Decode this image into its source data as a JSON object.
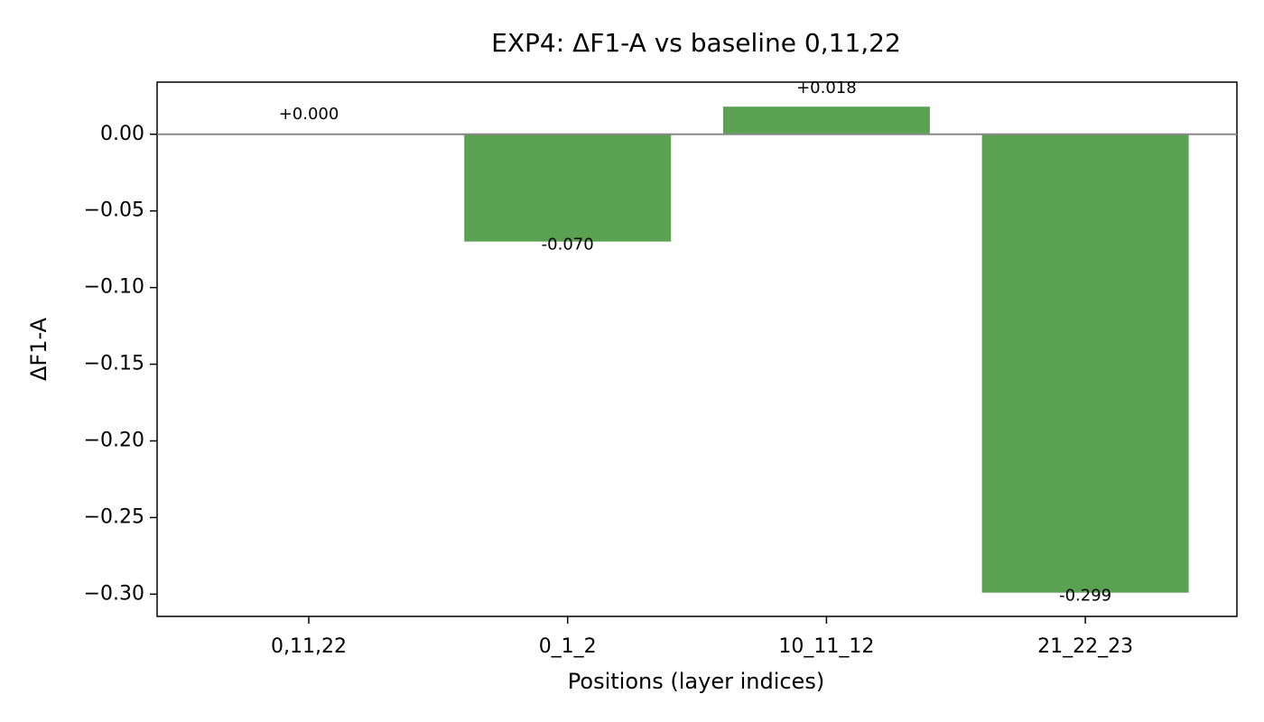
{
  "chart_data": {
    "type": "bar",
    "title": "EXP4: ΔF1-A vs baseline 0,11,22",
    "xlabel": "Positions (layer indices)",
    "ylabel": "ΔF1-A",
    "categories": [
      "0,11,22",
      "0_1_2",
      "10_11_12",
      "21_22_23"
    ],
    "values": [
      0.0,
      -0.07,
      0.018,
      -0.299
    ],
    "data_labels": [
      "+0.000",
      "-0.070",
      "+0.018",
      "-0.299"
    ],
    "yticks": [
      0.0,
      -0.05,
      -0.1,
      -0.15,
      -0.2,
      -0.25,
      -0.3
    ],
    "ytick_labels": [
      "0.00",
      "−0.05",
      "−0.10",
      "−0.15",
      "−0.20",
      "−0.25",
      "−0.30"
    ],
    "ylim": [
      -0.3145,
      0.034
    ],
    "grid": false,
    "zero_line": true,
    "colors": {
      "bar": "#5ba152",
      "zero_line": "#888888",
      "axis": "#000000"
    }
  }
}
